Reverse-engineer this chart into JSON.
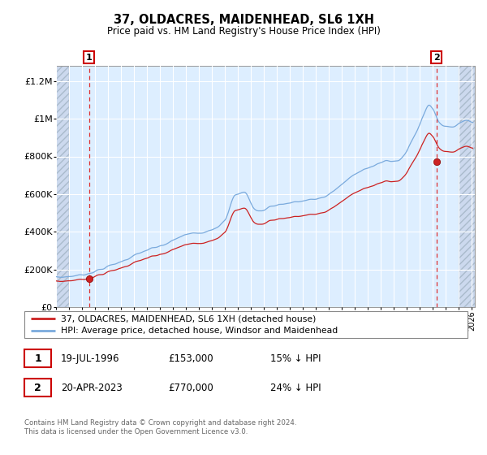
{
  "title": "37, OLDACRES, MAIDENHEAD, SL6 1XH",
  "subtitle": "Price paid vs. HM Land Registry's House Price Index (HPI)",
  "legend1": "37, OLDACRES, MAIDENHEAD, SL6 1XH (detached house)",
  "legend2": "HPI: Average price, detached house, Windsor and Maidenhead",
  "footer": "Contains HM Land Registry data © Crown copyright and database right 2024.\nThis data is licensed under the Open Government Licence v3.0.",
  "ylim": [
    0,
    1280000
  ],
  "yticks": [
    0,
    200000,
    400000,
    600000,
    800000,
    1000000,
    1200000
  ],
  "ytick_labels": [
    "£0",
    "£200K",
    "£400K",
    "£600K",
    "£800K",
    "£1M",
    "£1.2M"
  ],
  "hpi_color": "#7aaadd",
  "property_color": "#cc2222",
  "dashed_color": "#dd3333",
  "bg_color": "#ddeeff",
  "grid_color": "#ffffff",
  "purchase1_price": 153000,
  "purchase2_price": 770000,
  "purchase1_year": 1996,
  "purchase1_month": 7,
  "purchase2_year": 2023,
  "purchase2_month": 4,
  "ann1_date": "19-JUL-1996",
  "ann1_price": "£153,000",
  "ann1_pct": "15% ↓ HPI",
  "ann2_date": "20-APR-2023",
  "ann2_price": "£770,000",
  "ann2_pct": "24% ↓ HPI"
}
